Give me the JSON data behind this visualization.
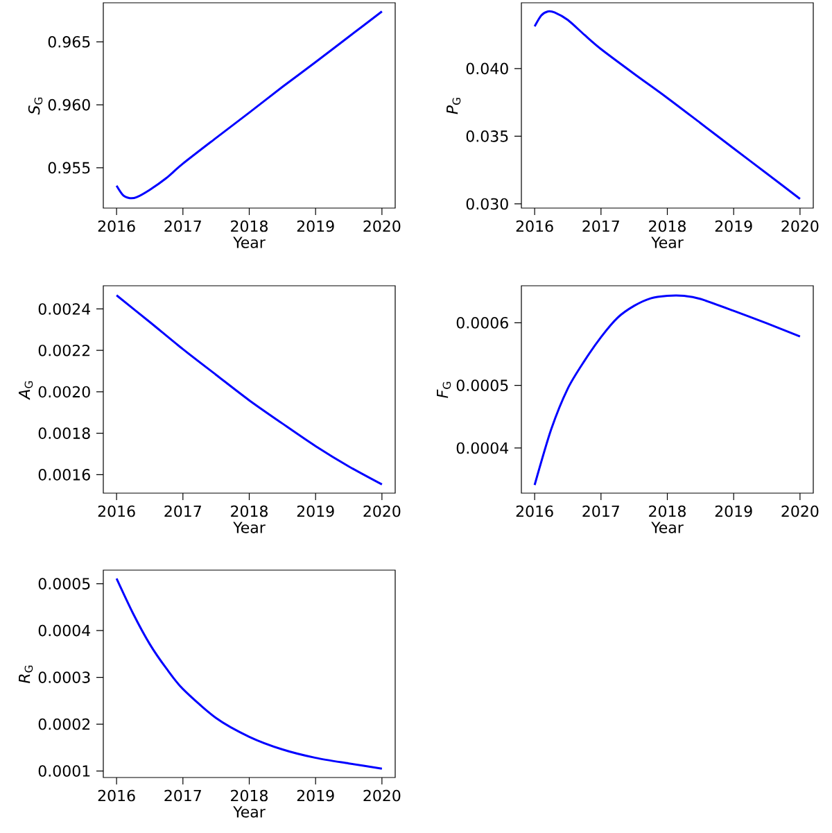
{
  "chart_data": [
    {
      "type": "line",
      "xlabel": "Year",
      "ylabel": "*S*$_{G}$",
      "xlim": [
        2015.8,
        2020.2
      ],
      "ylim": [
        0.9518,
        0.9681
      ],
      "xticks": [
        2016,
        2017,
        2018,
        2019,
        2020
      ],
      "yticks": [
        0.955,
        {
          "value": 0.96,
          "label": "0.960"
        },
        0.965
      ],
      "x": [
        2016,
        2016.1,
        2016.2,
        2016.3,
        2016.5,
        2016.75,
        2017,
        2017.5,
        2018,
        2018.5,
        2019,
        2019.5,
        2020
      ],
      "series": [
        {
          "color": "#0000ff",
          "values": [
            0.95358,
            0.95281,
            0.95259,
            0.95266,
            0.95325,
            0.95418,
            0.95533,
            0.95737,
            0.95938,
            0.96142,
            0.96339,
            0.9654,
            0.96741
          ]
        }
      ]
    },
    {
      "type": "line",
      "xlabel": "Year",
      "ylabel": "*P*$_{G}$",
      "xlim": [
        2015.8,
        2020.2
      ],
      "ylim": [
        0.02969,
        0.04486
      ],
      "xticks": [
        2016,
        2017,
        2018,
        2019,
        2020
      ],
      "yticks": [
        {
          "value": 0.03,
          "label": "0.030"
        },
        0.035,
        {
          "value": 0.04,
          "label": "0.040"
        }
      ],
      "x": [
        2016,
        2016.1,
        2016.2,
        2016.3,
        2016.5,
        2016.75,
        2017,
        2017.5,
        2018,
        2018.5,
        2019,
        2019.5,
        2020
      ],
      "series": [
        {
          "color": "#0000ff",
          "values": [
            0.04312,
            0.04393,
            0.04422,
            0.04415,
            0.04359,
            0.04249,
            0.04144,
            0.03961,
            0.03783,
            0.03597,
            0.0341,
            0.03224,
            0.03037
          ]
        }
      ]
    },
    {
      "type": "line",
      "xlabel": "Year",
      "ylabel": "*A*$_{G}$",
      "xlim": [
        2015.8,
        2020.2
      ],
      "ylim": [
        0.001511,
        0.002512
      ],
      "xticks": [
        2016,
        2017,
        2018,
        2019,
        2020
      ],
      "yticks": [
        0.0016,
        0.0018,
        {
          "value": 0.002,
          "label": "0.0020"
        },
        0.0022,
        0.0024
      ],
      "x": [
        2016,
        2016.5,
        2017,
        2017.5,
        2018,
        2018.5,
        2019,
        2019.5,
        2020
      ],
      "series": [
        {
          "color": "#0000ff",
          "values": [
            0.002466,
            0.002337,
            0.002206,
            0.002082,
            0.001959,
            0.001847,
            0.001738,
            0.00164,
            0.001553
          ]
        }
      ]
    },
    {
      "type": "line",
      "xlabel": "Year",
      "ylabel": "*F*$_{G}$",
      "xlim": [
        2015.8,
        2020.2
      ],
      "ylim": [
        0.000328,
        0.000659
      ],
      "xticks": [
        2016,
        2017,
        2018,
        2019,
        2020
      ],
      "yticks": [
        0.0004,
        0.0005,
        0.0006
      ],
      "x": [
        2016,
        2016.25,
        2016.5,
        2016.75,
        2017,
        2017.25,
        2017.5,
        2017.75,
        2018,
        2018.25,
        2018.5,
        2019,
        2019.5,
        2020
      ],
      "series": [
        {
          "color": "#0000ff",
          "values": [
            0.000341,
            0.00043,
            0.000495,
            0.000539,
            0.000577,
            0.000608,
            0.000627,
            0.000639,
            0.000643,
            0.000643,
            0.000638,
            0.000619,
            0.000599,
            0.000578
          ]
        }
      ]
    },
    {
      "type": "line",
      "xlabel": "Year",
      "ylabel": "*R*$_{G}$",
      "xlim": [
        2015.8,
        2020.2
      ],
      "ylim": [
        8.6e-05,
        0.000529
      ],
      "xticks": [
        2016,
        2017,
        2018,
        2019,
        2020
      ],
      "yticks": [
        0.0001,
        0.0002,
        0.0003,
        0.0004,
        0.0005
      ],
      "x": [
        2016,
        2016.25,
        2016.5,
        2016.75,
        2017,
        2017.5,
        2018,
        2018.5,
        2019,
        2019.5,
        2020
      ],
      "series": [
        {
          "color": "#0000ff",
          "values": [
            0.000511,
            0.000436,
            0.000371,
            0.000319,
            0.000275,
            0.000213,
            0.000173,
            0.000146,
            0.000128,
            0.000116,
            0.000105
          ]
        }
      ]
    }
  ]
}
